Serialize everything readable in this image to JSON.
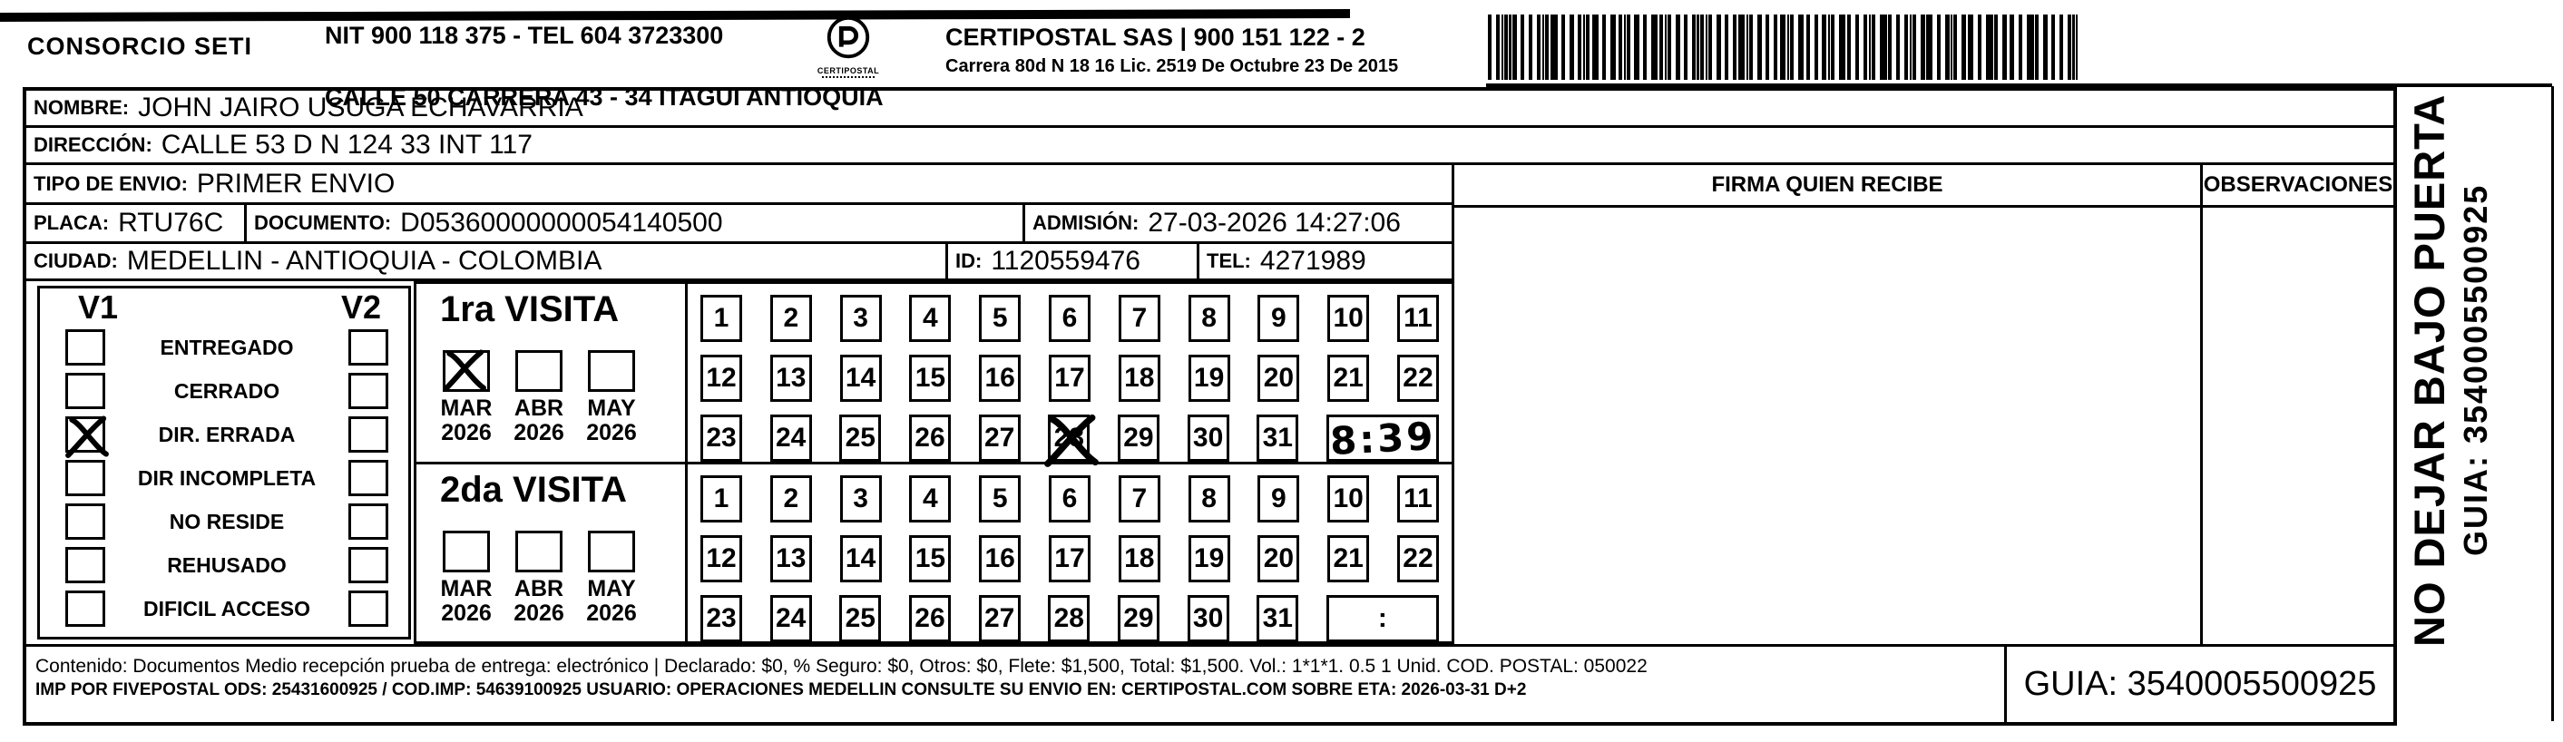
{
  "header": {
    "consorcio": "CONSORCIO SETI",
    "nit_line": "NIT 900 118 375 - TEL 604 3723300",
    "address_line": "CALLE 50 CARRERA 43 - 34 ITAGUI ANTIOQUIA",
    "logo_label": "CERTIPOSTAL",
    "company_line": "CERTIPOSTAL SAS | 900 151 122 - 2",
    "company_address": "Carrera 80d N 18 16  Lic. 2519 De Octubre 23 De 2015"
  },
  "recipient": {
    "nombre_label": "NOMBRE:",
    "nombre": "JOHN JAIRO USUGA ECHAVARRIA",
    "direccion_label": "DIRECCIÓN:",
    "direccion": "CALLE 53 D N 124 33 INT 117",
    "tipo_envio_label": "TIPO DE ENVIO:",
    "tipo_envio": "PRIMER ENVIO",
    "placa_label": "PLACA:",
    "placa": "RTU76C",
    "documento_label": "DOCUMENTO:",
    "documento": "D05360000000054140500",
    "admision_label": "ADMISIÓN:",
    "admision": "27-03-2026 14:27:06",
    "ciudad_label": "CIUDAD:",
    "ciudad": "MEDELLIN - ANTIOQUIA - COLOMBIA",
    "id_label": "ID:",
    "id": "1120559476",
    "tel_label": "TEL:",
    "tel": "4271989"
  },
  "columns": {
    "firma": "FIRMA QUIEN RECIBE",
    "observaciones": "OBSERVACIONES"
  },
  "status": {
    "v1": "V1",
    "v2": "V2",
    "items": [
      {
        "label": "ENTREGADO",
        "v1_checked": false,
        "v2_checked": false
      },
      {
        "label": "CERRADO",
        "v1_checked": false,
        "v2_checked": false
      },
      {
        "label": "DIR. ERRADA",
        "v1_checked": true,
        "v2_checked": false
      },
      {
        "label": "DIR INCOMPLETA",
        "v1_checked": false,
        "v2_checked": false
      },
      {
        "label": "NO RESIDE",
        "v1_checked": false,
        "v2_checked": false
      },
      {
        "label": "REHUSADO",
        "v1_checked": false,
        "v2_checked": false
      },
      {
        "label": "DIFICIL ACCESO",
        "v1_checked": false,
        "v2_checked": false
      }
    ]
  },
  "visits": [
    {
      "title": "1ra VISITA",
      "months": [
        {
          "label": "MAR",
          "year": "2026",
          "checked": true
        },
        {
          "label": "ABR",
          "year": "2026",
          "checked": false
        },
        {
          "label": "MAY",
          "year": "2026",
          "checked": false
        }
      ],
      "days": [
        "1",
        "2",
        "3",
        "4",
        "5",
        "6",
        "7",
        "8",
        "9",
        "10",
        "11",
        "12",
        "13",
        "14",
        "15",
        "16",
        "17",
        "18",
        "19",
        "20",
        "21",
        "22",
        "23",
        "24",
        "25",
        "26",
        "27",
        "28",
        "29",
        "30",
        "31"
      ],
      "crossed_day": "28",
      "time": "8:39",
      "time_handwritten": true
    },
    {
      "title": "2da VISITA",
      "months": [
        {
          "label": "MAR",
          "year": "2026",
          "checked": false
        },
        {
          "label": "ABR",
          "year": "2026",
          "checked": false
        },
        {
          "label": "MAY",
          "year": "2026",
          "checked": false
        }
      ],
      "days": [
        "1",
        "2",
        "3",
        "4",
        "5",
        "6",
        "7",
        "8",
        "9",
        "10",
        "11",
        "12",
        "13",
        "14",
        "15",
        "16",
        "17",
        "18",
        "19",
        "20",
        "21",
        "22",
        "23",
        "24",
        "25",
        "26",
        "27",
        "28",
        "29",
        "30",
        "31"
      ],
      "crossed_day": null,
      "time": ":",
      "time_handwritten": false
    }
  ],
  "footer": {
    "line1": "Contenido: Documentos Medio recepción prueba de entrega: electrónico | Declarado: $0, % Seguro: $0, Otros: $0, Flete: $1,500, Total: $1,500. Vol.: 1*1*1. 0.5  1 Unid. COD. POSTAL: 050022",
    "line2": "IMP POR FIVEPOSTAL ODS: 25431600925 / COD.IMP: 54639100925 USUARIO: OPERACIONES MEDELLIN CONSULTE SU ENVIO EN: CERTIPOSTAL.COM SOBRE ETA: 2026-03-31 D+2",
    "guia": "GUIA: 3540005500925"
  },
  "side": {
    "warning": "NO DEJAR BAJO PUERTA",
    "guia": "GUIA: 3540005500925"
  }
}
